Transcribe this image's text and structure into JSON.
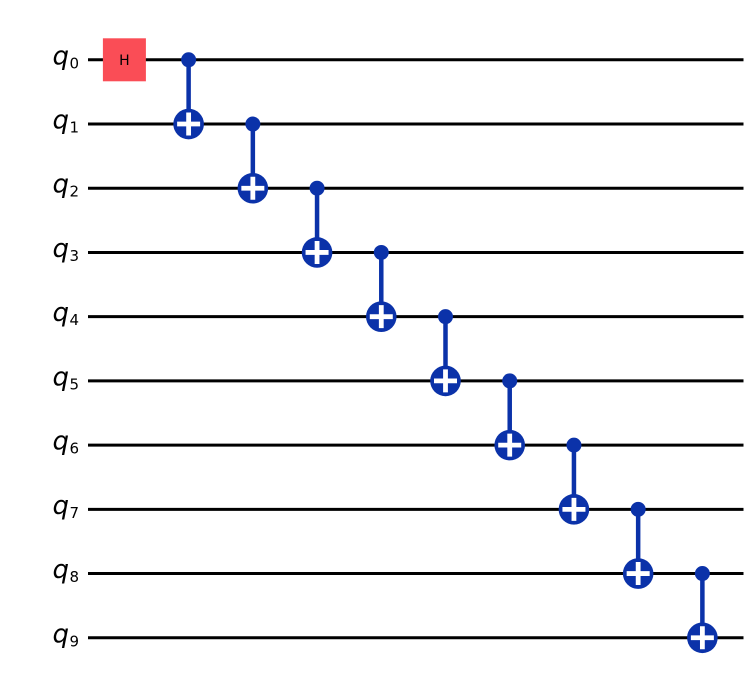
{
  "figure": {
    "type": "quantum-circuit",
    "background": "#ffffff",
    "colors": {
      "wire": "#000000",
      "label": "#000000",
      "h_fill": "#fa4d56",
      "h_label": "#000000",
      "cx": "#0b32a9",
      "plus": "#ffffff"
    },
    "qubits": [
      {
        "label": "q",
        "sub": "0"
      },
      {
        "label": "q",
        "sub": "1"
      },
      {
        "label": "q",
        "sub": "2"
      },
      {
        "label": "q",
        "sub": "3"
      },
      {
        "label": "q",
        "sub": "4"
      },
      {
        "label": "q",
        "sub": "5"
      },
      {
        "label": "q",
        "sub": "6"
      },
      {
        "label": "q",
        "sub": "7"
      },
      {
        "label": "q",
        "sub": "8"
      },
      {
        "label": "q",
        "sub": "9"
      }
    ],
    "gates": [
      {
        "kind": "h",
        "label": "H",
        "qubit": 0,
        "col": 0
      },
      {
        "kind": "cx",
        "control": 0,
        "target": 1,
        "col": 1
      },
      {
        "kind": "cx",
        "control": 1,
        "target": 2,
        "col": 2
      },
      {
        "kind": "cx",
        "control": 2,
        "target": 3,
        "col": 3
      },
      {
        "kind": "cx",
        "control": 3,
        "target": 4,
        "col": 4
      },
      {
        "kind": "cx",
        "control": 4,
        "target": 5,
        "col": 5
      },
      {
        "kind": "cx",
        "control": 5,
        "target": 6,
        "col": 6
      },
      {
        "kind": "cx",
        "control": 6,
        "target": 7,
        "col": 7
      },
      {
        "kind": "cx",
        "control": 7,
        "target": 8,
        "col": 8
      },
      {
        "kind": "cx",
        "control": 8,
        "target": 9,
        "col": 9
      }
    ]
  }
}
